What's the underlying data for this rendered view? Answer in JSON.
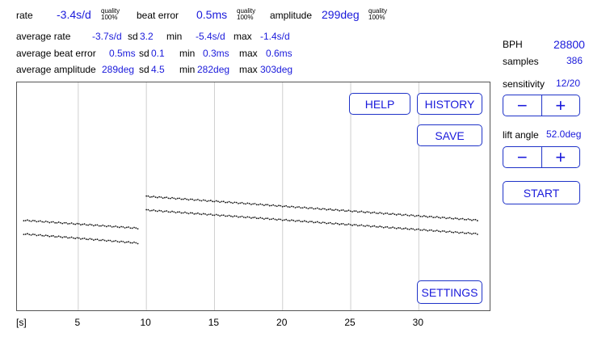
{
  "top": {
    "rate_label": "rate",
    "rate_value": "-3.4s/d",
    "rate_quality_label": "quality",
    "rate_quality_value": "100%",
    "beat_error_label": "beat error",
    "beat_error_value": "0.5ms",
    "beat_quality_label": "quality",
    "beat_quality_value": "100%",
    "amplitude_label": "amplitude",
    "amplitude_value": "299deg",
    "amp_quality_label": "quality",
    "amp_quality_value": "100%"
  },
  "averages": {
    "rows": [
      {
        "label": "average rate",
        "value": "-3.7s/d",
        "sd_label": "sd",
        "sd": "3.2",
        "min_label": "min",
        "min": "-5.4s/d",
        "max_label": "max",
        "max": "-1.4s/d"
      },
      {
        "label": "average beat error",
        "value": "0.5ms",
        "sd_label": "sd",
        "sd": "0.1",
        "min_label": "min",
        "min": "0.3ms",
        "max_label": "max",
        "max": "0.6ms"
      },
      {
        "label": "average amplitude",
        "value": "289deg",
        "sd_label": "sd",
        "sd": "4.5",
        "min_label": "min",
        "min": "282deg",
        "max_label": "max",
        "max": "303deg"
      }
    ]
  },
  "side": {
    "bph_label": "BPH",
    "bph_value": "28800",
    "samples_label": "samples",
    "samples_value": "386",
    "sensitivity_label": "sensitivity",
    "sensitivity_value": "12/20",
    "lift_angle_label": "lift angle",
    "lift_angle_value": "52.0deg",
    "minus": "−",
    "plus": "+",
    "start_label": "START"
  },
  "buttons": {
    "help": "HELP",
    "history": "HISTORY",
    "save": "SAVE",
    "settings": "SETTINGS"
  },
  "chart_data": {
    "type": "scatter",
    "xlabel": "[s]",
    "x_ticks": [
      5,
      10,
      15,
      20,
      25,
      30
    ],
    "xlim": [
      0.5,
      35.2
    ],
    "grid": "vertical",
    "series": [
      {
        "trace": "upper",
        "segments": [
          {
            "x_start": 1.0,
            "x_end": 9.4,
            "level_start": 0.605,
            "level_end": 0.64
          },
          {
            "x_start": 10.0,
            "x_end": 34.4,
            "level_start": 0.5,
            "level_end": 0.605
          }
        ]
      },
      {
        "trace": "lower",
        "segments": [
          {
            "x_start": 1.0,
            "x_end": 9.4,
            "level_start": 0.665,
            "level_end": 0.705
          },
          {
            "x_start": 10.0,
            "x_end": 34.4,
            "level_start": 0.56,
            "level_end": 0.665
          }
        ]
      }
    ],
    "colors": {
      "points": "#111111",
      "grid": "#cfcfcf",
      "frame": "#555555"
    }
  },
  "colors": {
    "accent": "#1a1adb",
    "button_border": "#1f33c8"
  }
}
